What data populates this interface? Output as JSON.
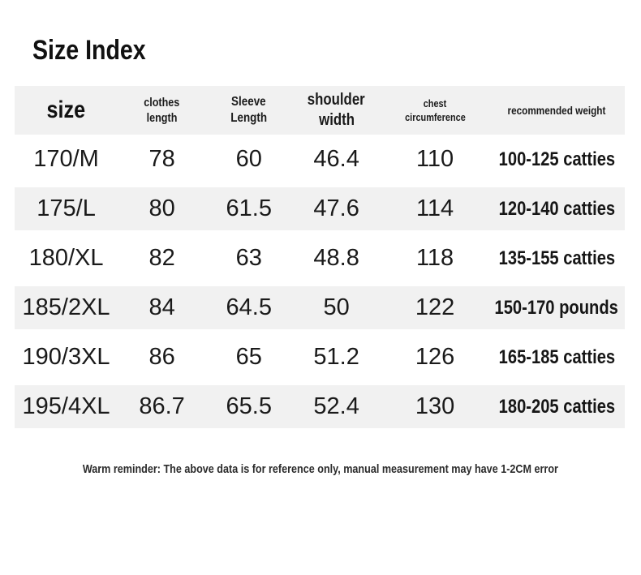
{
  "title": "Size Index",
  "header": {
    "size": "size",
    "clothes_length": [
      "clothes",
      "length"
    ],
    "sleeve_length": [
      "Sleeve",
      "Length"
    ],
    "shoulder_width": [
      "shoulder",
      "width"
    ],
    "chest_circumference": [
      "chest",
      "circumference"
    ],
    "recommended_weight": "recommended weight"
  },
  "chart_data": {
    "type": "table",
    "title": "Size Index",
    "columns": [
      "size",
      "clothes length",
      "Sleeve Length",
      "shoulder width",
      "chest circumference",
      "recommended weight"
    ],
    "rows": [
      [
        "170/M",
        "78",
        "60",
        "46.4",
        "110",
        "100-125 catties"
      ],
      [
        "175/L",
        "80",
        "61.5",
        "47.6",
        "114",
        "120-140 catties"
      ],
      [
        "180/XL",
        "82",
        "63",
        "48.8",
        "118",
        "135-155 catties"
      ],
      [
        "185/2XL",
        "84",
        "64.5",
        "50",
        "122",
        "150-170 pounds"
      ],
      [
        "190/3XL",
        "86",
        "65",
        "51.2",
        "126",
        "165-185 catties"
      ],
      [
        "195/4XL",
        "86.7",
        "65.5",
        "52.4",
        "130",
        "180-205 catties"
      ]
    ],
    "footnote": "Warm reminder: The above data is for reference only, manual measurement may have 1-2CM error",
    "layout": {
      "striped": true,
      "stripe_color": "#f1f1f1",
      "header_background": "#f1f1f1"
    }
  },
  "footer": "Warm reminder: The above data is for reference only, manual measurement may have 1-2CM error",
  "colors": {
    "stripe": "#f1f1f1",
    "text": "#1b1b1b",
    "background": "#ffffff"
  }
}
